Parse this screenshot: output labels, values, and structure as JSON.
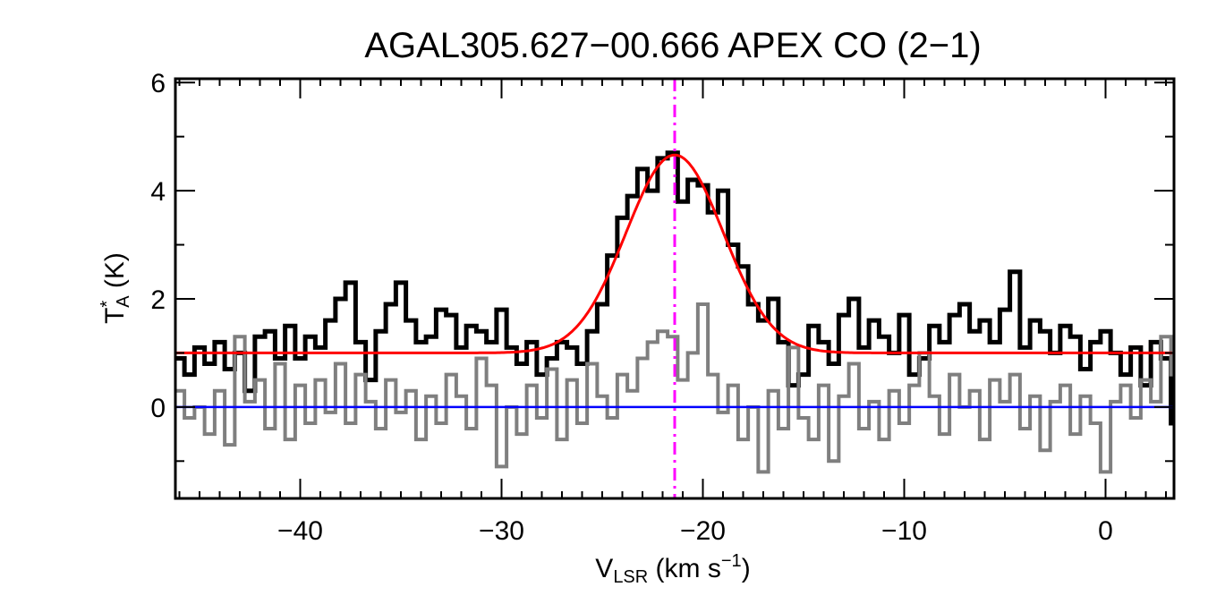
{
  "chart_data": {
    "type": "line",
    "title": "AGAL305.627−00.666  APEX CO (2−1)",
    "xlabel": {
      "main": "V",
      "sub": "LSR",
      "rest": " (km s",
      "sup": "−1",
      "end": ")"
    },
    "ylabel": {
      "main": "T",
      "sup": "*",
      "sub": "A",
      "rest": " (K)"
    },
    "xlim": [
      -46.2,
      3.4
    ],
    "ylim": [
      -1.69,
      6.07
    ],
    "xticks": [
      -40,
      -30,
      -20,
      -10,
      0
    ],
    "xtick_labels": [
      "−40",
      "−30",
      "−20",
      "−10",
      "0"
    ],
    "yticks": [
      0,
      2,
      4,
      6
    ],
    "ytick_labels": [
      "0",
      "2",
      "4",
      "6"
    ],
    "x_minor_step": 1,
    "y_minor_step": 1,
    "grid": false,
    "x": [
      -46.0,
      -45.5,
      -45.0,
      -44.5,
      -44.0,
      -43.5,
      -43.0,
      -42.5,
      -42.0,
      -41.5,
      -41.0,
      -40.5,
      -40.0,
      -39.5,
      -39.0,
      -38.5,
      -38.0,
      -37.5,
      -37.0,
      -36.5,
      -36.0,
      -35.5,
      -35.0,
      -34.5,
      -34.0,
      -33.5,
      -33.0,
      -32.5,
      -32.0,
      -31.5,
      -31.0,
      -30.5,
      -30.0,
      -29.5,
      -29.0,
      -28.5,
      -28.0,
      -27.5,
      -27.0,
      -26.5,
      -26.0,
      -25.5,
      -25.0,
      -24.5,
      -24.0,
      -23.5,
      -23.0,
      -22.5,
      -22.0,
      -21.5,
      -21.0,
      -20.5,
      -20.0,
      -19.5,
      -19.0,
      -18.5,
      -18.0,
      -17.5,
      -17.0,
      -16.5,
      -16.0,
      -15.5,
      -15.0,
      -14.5,
      -14.0,
      -13.5,
      -13.0,
      -12.5,
      -12.0,
      -11.5,
      -11.0,
      -10.5,
      -10.0,
      -9.5,
      -9.0,
      -8.5,
      -8.0,
      -7.5,
      -7.0,
      -6.5,
      -6.0,
      -5.5,
      -5.0,
      -4.5,
      -4.0,
      -3.5,
      -3.0,
      -2.5,
      -2.0,
      -1.5,
      -1.0,
      -0.5,
      0.0,
      0.5,
      1.0,
      1.5,
      2.0,
      2.5,
      3.0,
      3.5
    ],
    "series": [
      {
        "color": "#000000",
        "style": "step",
        "values": [
          0.9,
          0.6,
          1.1,
          0.8,
          1.2,
          0.7,
          1.0,
          0.3,
          1.3,
          1.4,
          0.9,
          1.5,
          0.9,
          1.3,
          1.1,
          1.6,
          2.0,
          2.3,
          1.2,
          0.5,
          1.4,
          1.9,
          2.3,
          1.6,
          1.2,
          1.3,
          1.8,
          1.7,
          1.1,
          1.5,
          1.4,
          1.2,
          1.8,
          1.1,
          0.8,
          1.2,
          0.6,
          0.9,
          1.2,
          1.1,
          0.8,
          1.4,
          1.9,
          2.8,
          3.5,
          3.9,
          4.4,
          4.0,
          4.6,
          4.7,
          3.8,
          4.2,
          4.1,
          3.6,
          4.0,
          3.0,
          2.6,
          1.9,
          1.6,
          2.0,
          1.2,
          0.4,
          0.6,
          1.5,
          1.2,
          0.8,
          1.7,
          2.0,
          1.1,
          1.6,
          1.3,
          1.0,
          1.7,
          0.6,
          0.9,
          1.5,
          1.2,
          1.7,
          1.9,
          1.4,
          1.6,
          1.2,
          1.8,
          2.5,
          1.1,
          1.6,
          1.4,
          1.0,
          1.5,
          1.3,
          0.7,
          1.2,
          1.4,
          1.0,
          0.6,
          1.1,
          0.4,
          1.2,
          0.9,
          -0.3
        ]
      },
      {
        "color": "#7f7f7f",
        "style": "step",
        "values": [
          0.3,
          -0.2,
          0.0,
          -0.5,
          0.3,
          -0.7,
          1.3,
          0.1,
          0.5,
          -0.4,
          0.8,
          -0.6,
          0.4,
          -0.3,
          0.5,
          -0.1,
          0.8,
          -0.3,
          0.6,
          0.1,
          -0.4,
          0.5,
          -0.1,
          0.3,
          -0.6,
          0.2,
          -0.3,
          0.6,
          0.2,
          -0.4,
          0.9,
          0.4,
          -1.1,
          0.0,
          -0.5,
          0.4,
          -0.2,
          0.7,
          -0.6,
          0.5,
          -0.3,
          0.8,
          0.2,
          -0.2,
          0.6,
          0.3,
          0.9,
          1.2,
          1.4,
          1.3,
          0.5,
          1.0,
          1.9,
          0.6,
          -0.1,
          0.4,
          -0.6,
          0.0,
          -1.2,
          0.3,
          -0.4,
          1.1,
          -0.2,
          -0.6,
          0.4,
          -1.0,
          0.2,
          0.8,
          -0.4,
          0.1,
          -0.6,
          0.3,
          -0.3,
          0.4,
          1.0,
          0.2,
          -0.5,
          0.6,
          0.0,
          0.3,
          -0.6,
          0.5,
          0.1,
          0.6,
          -0.4,
          0.2,
          -0.8,
          0.1,
          0.4,
          -0.5,
          0.2,
          -0.3,
          -1.2,
          0.1,
          0.4,
          -0.2,
          0.5,
          0.1,
          1.3,
          0.6
        ]
      }
    ],
    "gaussian_fit": {
      "color": "#ff0000",
      "baseline": 1.0,
      "amplitude": 3.66,
      "center": -21.4,
      "fwhm": 5.7
    },
    "zero_line": {
      "color": "#0000ff",
      "y": 0
    },
    "velocity_marker": {
      "color": "#ff00ff",
      "x": -21.4,
      "style": "dash-dot"
    }
  }
}
